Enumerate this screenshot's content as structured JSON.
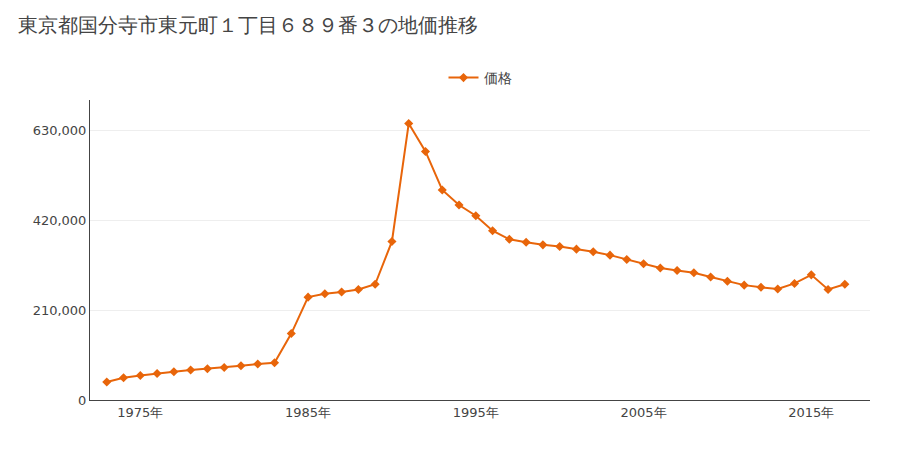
{
  "chart_data": {
    "type": "line",
    "title": "東京都国分寺市東元町１丁目６８９番３の地価推移",
    "x": [
      1973,
      1974,
      1975,
      1976,
      1977,
      1978,
      1979,
      1980,
      1981,
      1982,
      1983,
      1984,
      1985,
      1986,
      1987,
      1988,
      1989,
      1990,
      1991,
      1992,
      1993,
      1994,
      1995,
      1996,
      1997,
      1998,
      1999,
      2000,
      2001,
      2002,
      2003,
      2004,
      2005,
      2006,
      2007,
      2008,
      2009,
      2010,
      2011,
      2012,
      2013,
      2014,
      2015,
      2016,
      2017
    ],
    "series": [
      {
        "name": "価格",
        "color": "#e8650a",
        "marker": "diamond",
        "values": [
          42000,
          52000,
          57000,
          62000,
          66000,
          70000,
          73000,
          76000,
          80000,
          84000,
          87000,
          155000,
          240000,
          248000,
          252000,
          258000,
          270000,
          370000,
          645000,
          580000,
          490000,
          455000,
          430000,
          395000,
          375000,
          368000,
          362000,
          358000,
          352000,
          346000,
          338000,
          328000,
          318000,
          308000,
          302000,
          297000,
          287000,
          277000,
          268000,
          263000,
          259000,
          272000,
          292000,
          258000,
          270000
        ]
      }
    ],
    "xlim": [
      1972,
      2018.5
    ],
    "xticks": [
      {
        "value": 1975,
        "label": "1975年"
      },
      {
        "value": 1985,
        "label": "1985年"
      },
      {
        "value": 1995,
        "label": "1995年"
      },
      {
        "value": 2005,
        "label": "2005年"
      },
      {
        "value": 2015,
        "label": "2015年"
      }
    ],
    "ylim": [
      0,
      700000
    ],
    "yticks": [
      0,
      {
        "value": 210000,
        "label": "210,000"
      },
      {
        "value": 420000,
        "label": "420,000"
      },
      {
        "value": 630000,
        "label": "630,000"
      }
    ],
    "grid": "y",
    "legend": "top"
  }
}
